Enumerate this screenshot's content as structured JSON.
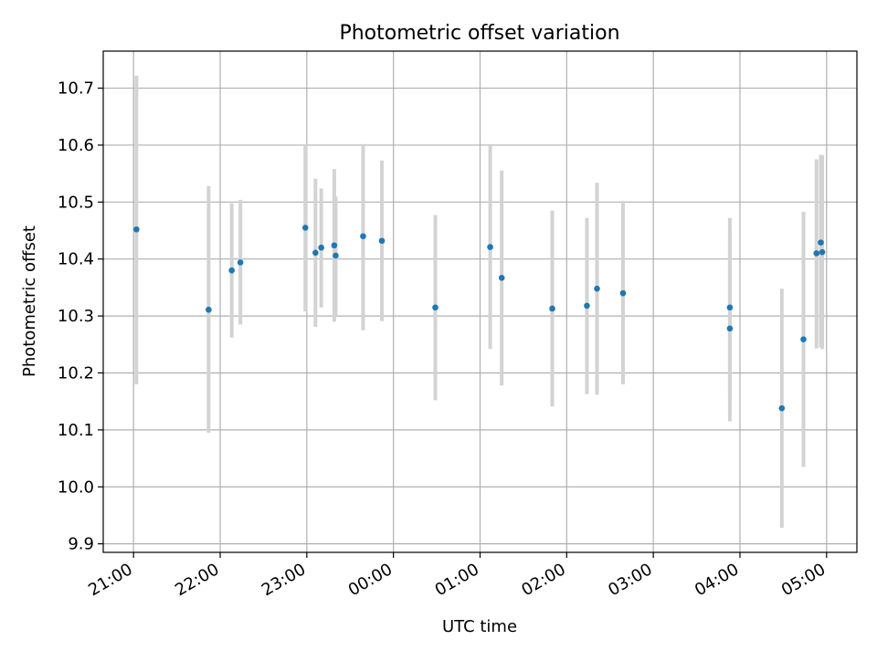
{
  "chart_data": {
    "type": "scatter",
    "title": "Photometric offset variation",
    "xlabel": "UTC time",
    "ylabel": "Photometric offset",
    "xlim": [
      "20:39",
      "05:21"
    ],
    "ylim": [
      9.885,
      10.765
    ],
    "xticks": [
      "21:00",
      "22:00",
      "23:00",
      "00:00",
      "01:00",
      "02:00",
      "03:00",
      "04:00",
      "05:00"
    ],
    "yticks": [
      "9.9",
      "10.0",
      "10.1",
      "10.2",
      "10.3",
      "10.4",
      "10.5",
      "10.6",
      "10.7"
    ],
    "grid": true,
    "colors": {
      "point": "#1f77b4",
      "errorbar": "#d3d3d3",
      "grid": "#b0b0b0"
    },
    "series": [
      {
        "points": [
          {
            "t": "21:02",
            "y": 10.452,
            "ylo": 10.18,
            "yhi": 10.722
          },
          {
            "t": "21:52",
            "y": 10.311,
            "ylo": 10.095,
            "yhi": 10.528
          },
          {
            "t": "22:08",
            "y": 10.38,
            "ylo": 10.262,
            "yhi": 10.498
          },
          {
            "t": "22:14",
            "y": 10.394,
            "ylo": 10.285,
            "yhi": 10.504
          },
          {
            "t": "22:59",
            "y": 10.455,
            "ylo": 10.308,
            "yhi": 10.602
          },
          {
            "t": "23:06",
            "y": 10.411,
            "ylo": 10.281,
            "yhi": 10.541
          },
          {
            "t": "23:10",
            "y": 10.42,
            "ylo": 10.315,
            "yhi": 10.524
          },
          {
            "t": "23:19",
            "y": 10.424,
            "ylo": 10.29,
            "yhi": 10.558
          },
          {
            "t": "23:20",
            "y": 10.406,
            "ylo": 10.3,
            "yhi": 10.51
          },
          {
            "t": "23:39",
            "y": 10.44,
            "ylo": 10.275,
            "yhi": 10.602
          },
          {
            "t": "23:52",
            "y": 10.432,
            "ylo": 10.291,
            "yhi": 10.573
          },
          {
            "t": "00:29",
            "y": 10.315,
            "ylo": 10.152,
            "yhi": 10.477
          },
          {
            "t": "01:07",
            "y": 10.421,
            "ylo": 10.242,
            "yhi": 10.6
          },
          {
            "t": "01:15",
            "y": 10.367,
            "ylo": 10.178,
            "yhi": 10.555
          },
          {
            "t": "01:50",
            "y": 10.313,
            "ylo": 10.141,
            "yhi": 10.485
          },
          {
            "t": "02:14",
            "y": 10.318,
            "ylo": 10.163,
            "yhi": 10.472
          },
          {
            "t": "02:21",
            "y": 10.348,
            "ylo": 10.162,
            "yhi": 10.534
          },
          {
            "t": "02:39",
            "y": 10.34,
            "ylo": 10.18,
            "yhi": 10.502
          },
          {
            "t": "03:53",
            "y": 10.315,
            "ylo": 10.158,
            "yhi": 10.472
          },
          {
            "t": "03:53",
            "y": 10.278,
            "ylo": 10.115,
            "yhi": 10.442
          },
          {
            "t": "04:29",
            "y": 10.138,
            "ylo": 9.928,
            "yhi": 10.348
          },
          {
            "t": "04:44",
            "y": 10.259,
            "ylo": 10.035,
            "yhi": 10.483
          },
          {
            "t": "04:53",
            "y": 10.41,
            "ylo": 10.243,
            "yhi": 10.575
          },
          {
            "t": "04:56",
            "y": 10.429,
            "ylo": 10.245,
            "yhi": 10.583
          },
          {
            "t": "04:57",
            "y": 10.412,
            "ylo": 10.242,
            "yhi": 10.582
          }
        ]
      }
    ]
  }
}
